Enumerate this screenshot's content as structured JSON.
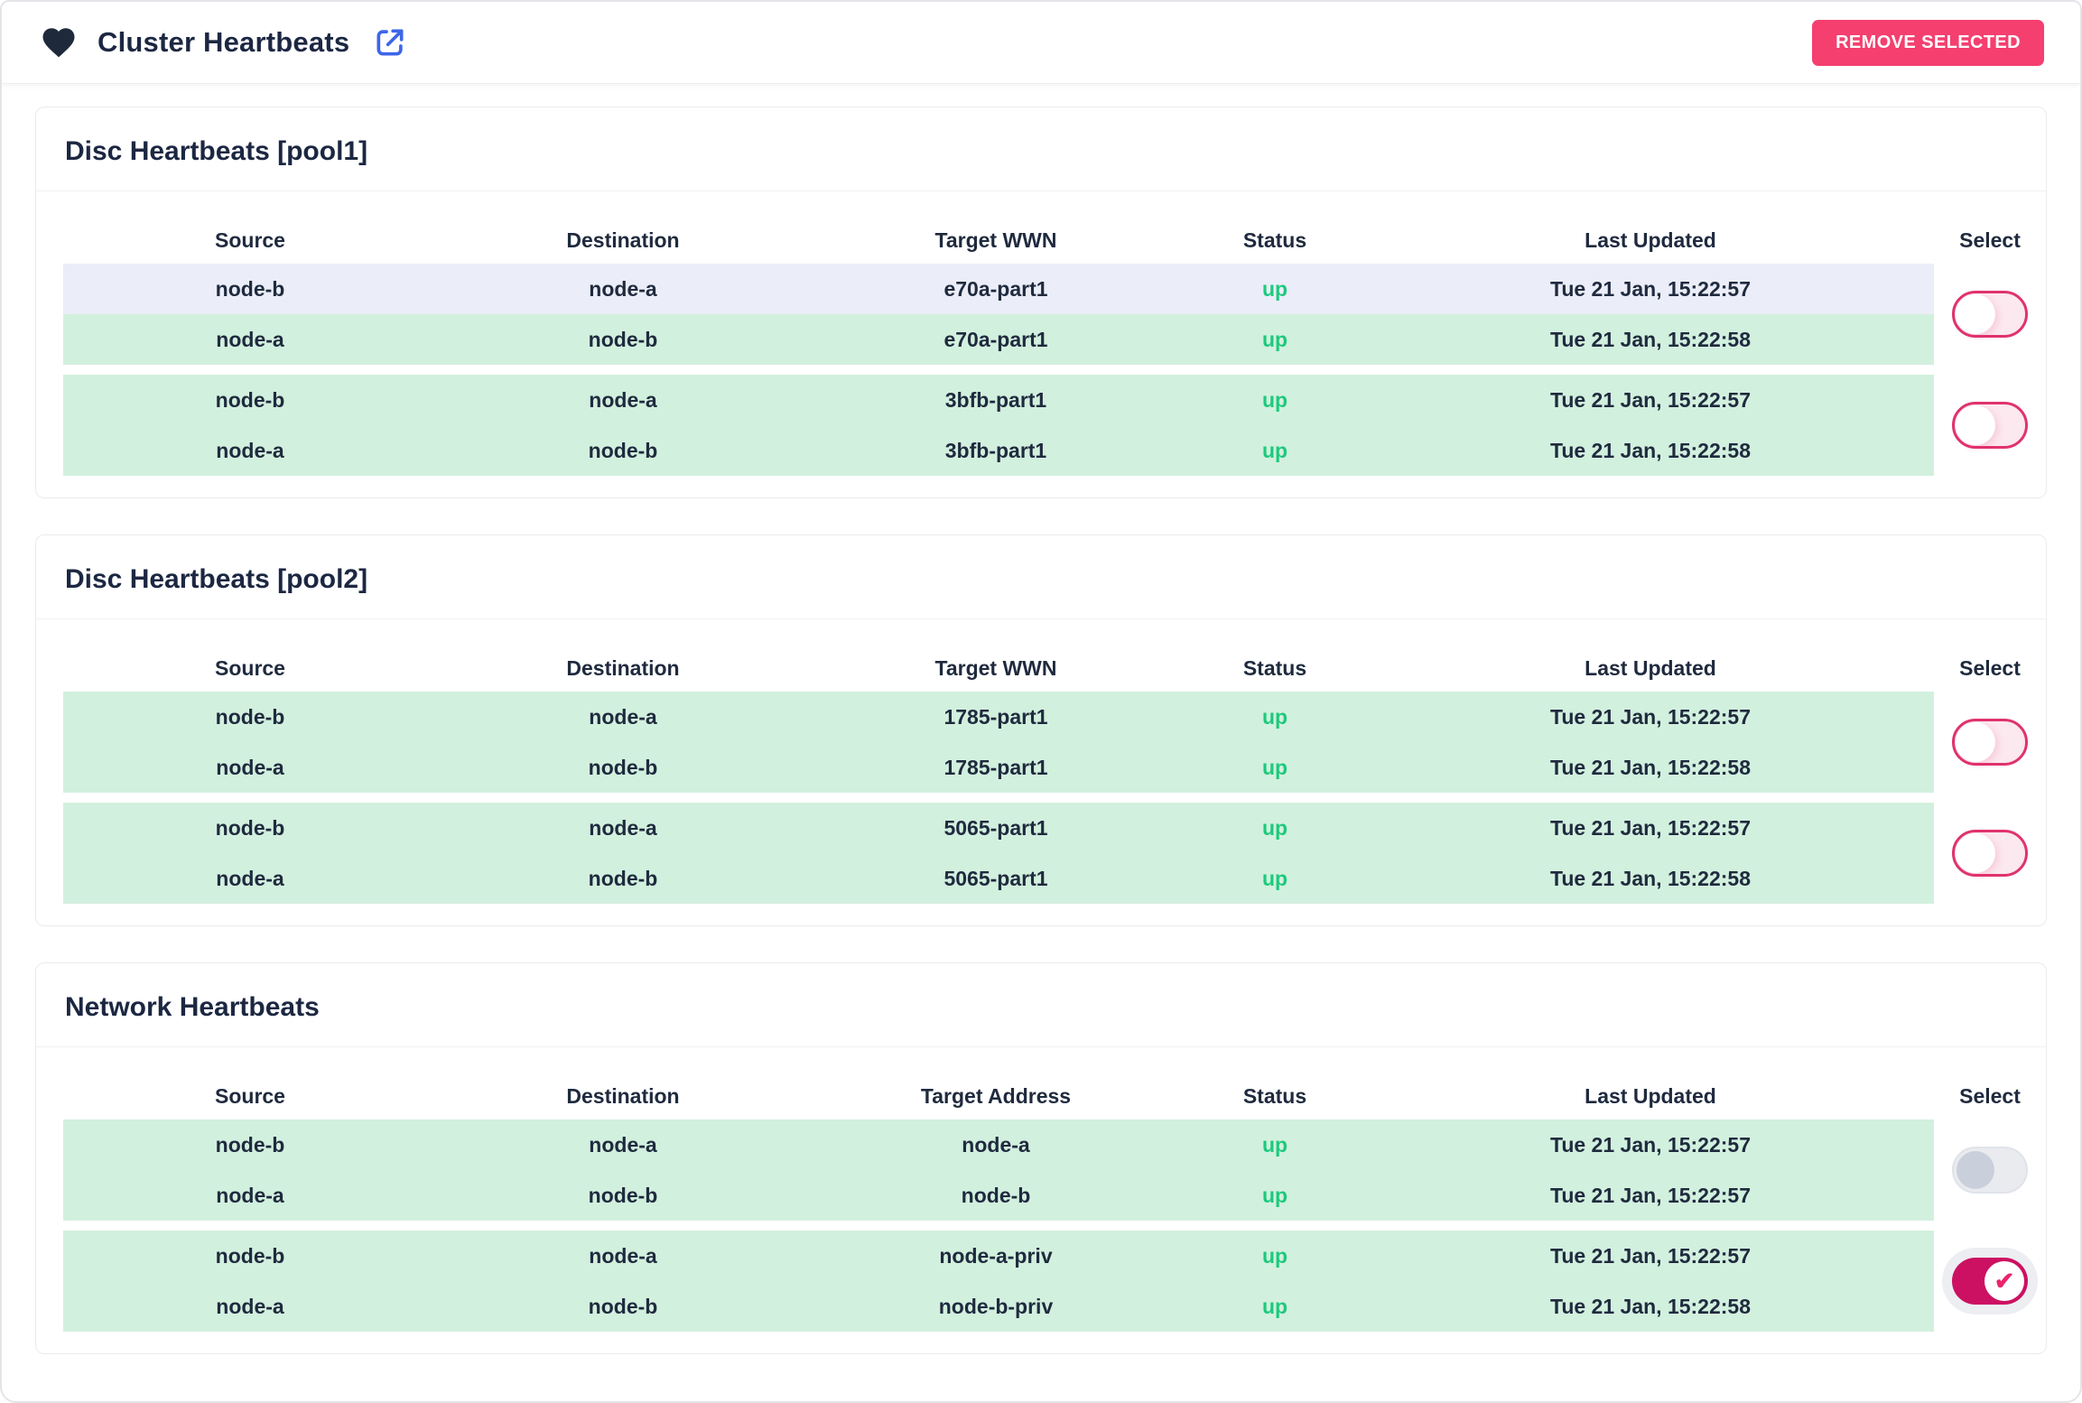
{
  "header": {
    "title": "Cluster Heartbeats",
    "remove_button_label": "REMOVE SELECTED"
  },
  "icons": {
    "heart": "heart-icon",
    "external_link": "external-link-icon",
    "toggle_check_glyph": "✔"
  },
  "colors": {
    "accent_pink": "#F43F6F",
    "toggle_on_pink": "#CC1162",
    "toggle_off_border_pink": "#E0336E",
    "row_green": "#D2F0DE",
    "row_lavender": "#EBEDF8",
    "status_up_green": "#1EC97D",
    "link_blue": "#3D66E8",
    "text_navy": "#1F2A3E"
  },
  "sections": [
    {
      "title": "Disc Heartbeats [pool1]",
      "columns": [
        "Source",
        "Destination",
        "Target WWN",
        "Status",
        "Last Updated",
        "Select"
      ],
      "pairs": [
        {
          "select_state": "off",
          "rows": [
            {
              "bg": "lavender",
              "cells": [
                "node-b",
                "node-a",
                "e70a-part1",
                "up",
                "Tue 21 Jan, 15:22:57"
              ]
            },
            {
              "bg": "green",
              "cells": [
                "node-a",
                "node-b",
                "e70a-part1",
                "up",
                "Tue 21 Jan, 15:22:58"
              ]
            }
          ]
        },
        {
          "select_state": "off",
          "rows": [
            {
              "bg": "green",
              "cells": [
                "node-b",
                "node-a",
                "3bfb-part1",
                "up",
                "Tue 21 Jan, 15:22:57"
              ]
            },
            {
              "bg": "green",
              "cells": [
                "node-a",
                "node-b",
                "3bfb-part1",
                "up",
                "Tue 21 Jan, 15:22:58"
              ]
            }
          ]
        }
      ]
    },
    {
      "title": "Disc Heartbeats [pool2]",
      "columns": [
        "Source",
        "Destination",
        "Target WWN",
        "Status",
        "Last Updated",
        "Select"
      ],
      "pairs": [
        {
          "select_state": "off",
          "rows": [
            {
              "bg": "green",
              "cells": [
                "node-b",
                "node-a",
                "1785-part1",
                "up",
                "Tue 21 Jan, 15:22:57"
              ]
            },
            {
              "bg": "green",
              "cells": [
                "node-a",
                "node-b",
                "1785-part1",
                "up",
                "Tue 21 Jan, 15:22:58"
              ]
            }
          ]
        },
        {
          "select_state": "off",
          "rows": [
            {
              "bg": "green",
              "cells": [
                "node-b",
                "node-a",
                "5065-part1",
                "up",
                "Tue 21 Jan, 15:22:57"
              ]
            },
            {
              "bg": "green",
              "cells": [
                "node-a",
                "node-b",
                "5065-part1",
                "up",
                "Tue 21 Jan, 15:22:58"
              ]
            }
          ]
        }
      ]
    },
    {
      "title": "Network Heartbeats",
      "columns": [
        "Source",
        "Destination",
        "Target Address",
        "Status",
        "Last Updated",
        "Select"
      ],
      "pairs": [
        {
          "select_state": "disabled",
          "rows": [
            {
              "bg": "green",
              "cells": [
                "node-b",
                "node-a",
                "node-a",
                "up",
                "Tue 21 Jan, 15:22:57"
              ]
            },
            {
              "bg": "green",
              "cells": [
                "node-a",
                "node-b",
                "node-b",
                "up",
                "Tue 21 Jan, 15:22:57"
              ]
            }
          ]
        },
        {
          "select_state": "on",
          "rows": [
            {
              "bg": "green",
              "cells": [
                "node-b",
                "node-a",
                "node-a-priv",
                "up",
                "Tue 21 Jan, 15:22:57"
              ]
            },
            {
              "bg": "green",
              "cells": [
                "node-a",
                "node-b",
                "node-b-priv",
                "up",
                "Tue 21 Jan, 15:22:58"
              ]
            }
          ]
        }
      ]
    }
  ]
}
